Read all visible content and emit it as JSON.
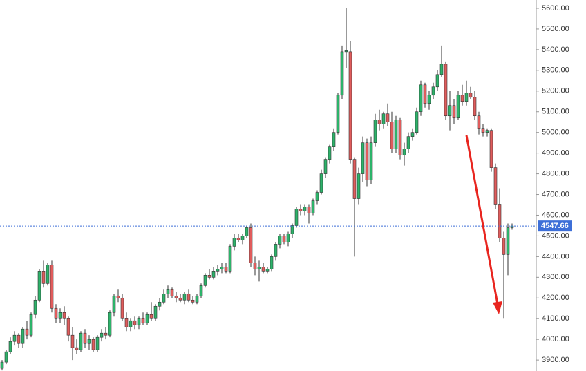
{
  "chart_data": {
    "type": "candlestick",
    "ylim": [
      3847,
      5640
    ],
    "yticks": [
      {
        "value": 3900,
        "label": "3900.00"
      },
      {
        "value": 4000,
        "label": "4000.00"
      },
      {
        "value": 4100,
        "label": "4100.00"
      },
      {
        "value": 4200,
        "label": "4200.00"
      },
      {
        "value": 4300,
        "label": "4300.00"
      },
      {
        "value": 4400,
        "label": "4400.00"
      },
      {
        "value": 4500,
        "label": "4500.00"
      },
      {
        "value": 4600,
        "label": "4600.00"
      },
      {
        "value": 4700,
        "label": "4700.00"
      },
      {
        "value": 4800,
        "label": "4800.00"
      },
      {
        "value": 4900,
        "label": "4900.00"
      },
      {
        "value": 5000,
        "label": "5000.00"
      },
      {
        "value": 5100,
        "label": "5100.00"
      },
      {
        "value": 5200,
        "label": "5200.00"
      },
      {
        "value": 5300,
        "label": "5300.00"
      },
      {
        "value": 5400,
        "label": "5400.00"
      },
      {
        "value": 5500,
        "label": "5500.00"
      },
      {
        "value": 5600,
        "label": "5600.00"
      }
    ],
    "last_price": 4547.66,
    "up_color": "#2db36a",
    "down_color": "#e05c5c",
    "last_price_color": "#3d6fd8",
    "open": [
      3860,
      3890,
      3940,
      3990,
      4020,
      3980,
      4050,
      4020,
      4120,
      4190,
      4330,
      4270,
      4360,
      4150,
      4100,
      4130,
      4100,
      4020,
      3960,
      3950,
      4030,
      3980,
      4000,
      3950,
      4010,
      4030,
      4020,
      4130,
      4210,
      4200,
      4100,
      4060,
      4090,
      4070,
      4100,
      4080,
      4120,
      4100,
      4160,
      4180,
      4220,
      4240,
      4210,
      4200,
      4190,
      4220,
      4190,
      4180,
      4210,
      4260,
      4310,
      4300,
      4330,
      4340,
      4350,
      4330,
      4450,
      4490,
      4480,
      4500,
      4540,
      4370,
      4340,
      4350,
      4330,
      4340,
      4400,
      4460,
      4500,
      4470,
      4510,
      4550,
      4630,
      4620,
      4640,
      4610,
      4670,
      4710,
      4800,
      4870,
      4930,
      5000,
      5180,
      5390,
      5390,
      4870,
      4680,
      4800,
      4950,
      4770,
      4950,
      5060,
      5040,
      5090,
      5050,
      4920,
      5060,
      4890,
      4920,
      4980,
      5000,
      5100,
      5230,
      5140,
      5180,
      5220,
      5280,
      5330,
      5080,
      5130,
      5070,
      5180,
      5150,
      5190,
      5170,
      5080,
      5020,
      5000,
      5010,
      4830,
      4650,
      4490,
      4410,
      4540
    ],
    "high": [
      3900,
      3950,
      4010,
      4040,
      4030,
      4060,
      4090,
      4130,
      4210,
      4340,
      4380,
      4370,
      4380,
      4170,
      4150,
      4160,
      4110,
      4060,
      4000,
      4040,
      4050,
      4020,
      4010,
      4020,
      4050,
      4060,
      4140,
      4220,
      4240,
      4220,
      4130,
      4100,
      4110,
      4110,
      4130,
      4130,
      4180,
      4170,
      4200,
      4240,
      4260,
      4250,
      4230,
      4220,
      4230,
      4240,
      4210,
      4220,
      4270,
      4320,
      4340,
      4350,
      4360,
      4370,
      4370,
      4460,
      4510,
      4510,
      4510,
      4550,
      4560,
      4400,
      4380,
      4370,
      4350,
      4410,
      4470,
      4510,
      4510,
      4520,
      4560,
      4640,
      4650,
      4650,
      4650,
      4680,
      4720,
      4820,
      4880,
      4940,
      5020,
      5190,
      5420,
      5600,
      5440,
      4880,
      4830,
      4980,
      4970,
      4980,
      5090,
      5110,
      5100,
      5140,
      5100,
      5080,
      5070,
      4950,
      5000,
      5020,
      5120,
      5250,
      5240,
      5200,
      5240,
      5300,
      5420,
      5340,
      5200,
      5160,
      5200,
      5230,
      5250,
      5220,
      5200,
      5100,
      5040,
      5020,
      5020,
      4850,
      4730,
      4520,
      4560,
      4560
    ],
    "low": [
      3850,
      3880,
      3930,
      3970,
      3960,
      3960,
      4000,
      4010,
      4100,
      4180,
      4250,
      4260,
      4130,
      4080,
      4080,
      4070,
      3990,
      3900,
      3930,
      3940,
      3960,
      3950,
      3940,
      3940,
      3990,
      4000,
      4010,
      4110,
      4180,
      4090,
      4040,
      4040,
      4050,
      4050,
      4070,
      4070,
      4090,
      4090,
      4140,
      4170,
      4200,
      4200,
      4180,
      4180,
      4170,
      4180,
      4170,
      4170,
      4200,
      4250,
      4290,
      4290,
      4310,
      4320,
      4320,
      4320,
      4430,
      4470,
      4460,
      4490,
      4350,
      4310,
      4280,
      4320,
      4320,
      4330,
      4380,
      4440,
      4460,
      4450,
      4490,
      4540,
      4600,
      4600,
      4560,
      4600,
      4650,
      4700,
      4780,
      4850,
      4910,
      4990,
      5160,
      5310,
      4850,
      4400,
      4650,
      4760,
      4740,
      4750,
      4930,
      5010,
      5020,
      5030,
      4900,
      4900,
      4870,
      4840,
      4900,
      4960,
      4990,
      5080,
      5120,
      5110,
      5160,
      5200,
      5270,
      5060,
      5010,
      5040,
      5060,
      5130,
      5130,
      5160,
      5060,
      4990,
      4980,
      4980,
      4810,
      4630,
      4470,
      4100,
      4310,
      4530
    ],
    "close": [
      3890,
      3940,
      3990,
      4020,
      3980,
      4050,
      4020,
      4120,
      4190,
      4330,
      4270,
      4360,
      4150,
      4100,
      4130,
      4100,
      4020,
      3960,
      3950,
      4030,
      3980,
      4000,
      3950,
      4010,
      4030,
      4020,
      4130,
      4210,
      4200,
      4100,
      4060,
      4090,
      4070,
      4100,
      4080,
      4120,
      4100,
      4160,
      4180,
      4220,
      4240,
      4210,
      4200,
      4190,
      4220,
      4190,
      4180,
      4210,
      4260,
      4310,
      4300,
      4330,
      4340,
      4350,
      4330,
      4450,
      4490,
      4480,
      4500,
      4540,
      4370,
      4340,
      4350,
      4330,
      4340,
      4400,
      4460,
      4500,
      4470,
      4510,
      4550,
      4630,
      4620,
      4640,
      4610,
      4670,
      4710,
      4800,
      4870,
      4930,
      5000,
      5180,
      5390,
      5395,
      4870,
      4680,
      4800,
      4950,
      4770,
      4950,
      5060,
      5040,
      5090,
      5050,
      4920,
      5060,
      4890,
      4920,
      4980,
      5000,
      5100,
      5230,
      5140,
      5180,
      5220,
      5280,
      5330,
      5080,
      5130,
      5070,
      5180,
      5150,
      5190,
      5170,
      5080,
      5020,
      5000,
      5010,
      4830,
      4650,
      4490,
      4410,
      4540,
      4547.66
    ]
  }
}
